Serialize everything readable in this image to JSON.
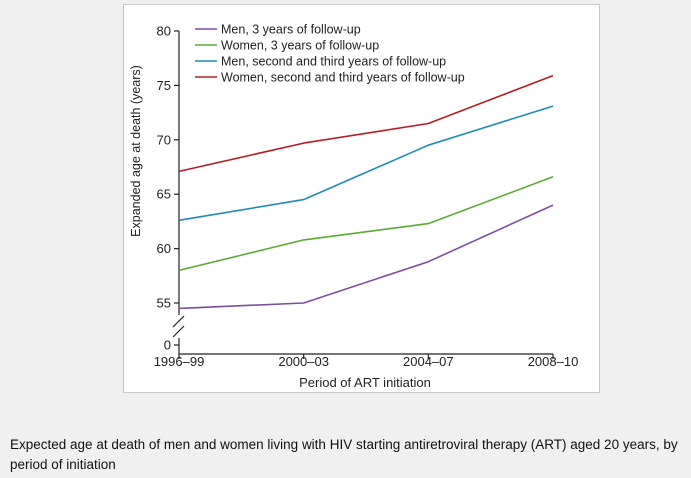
{
  "caption": "Expected age at death of men and women living with HIV starting antiretroviral therapy (ART) aged 20 years, by period of initiation",
  "chart_data": {
    "type": "line",
    "title": "",
    "xlabel": "Period of ART initiation",
    "ylabel": "Expanded age at death (years)",
    "categories": [
      "1996–99",
      "2000–03",
      "2004–07",
      "2008–10"
    ],
    "yticks": [
      55,
      60,
      65,
      70,
      75,
      80
    ],
    "ylim": [
      54,
      80
    ],
    "y_axis_break": true,
    "y_origin_label": "0",
    "grid": false,
    "legend": "top-left",
    "series": [
      {
        "name": "Men, 3 years of follow-up",
        "color": "#7b4fa0",
        "values": [
          54.5,
          55.0,
          58.8,
          64.0
        ]
      },
      {
        "name": "Women, 3 years of follow-up",
        "color": "#5aaa32",
        "values": [
          58.0,
          60.8,
          62.3,
          66.6
        ]
      },
      {
        "name": "Men, second and third years of follow-up",
        "color": "#1e8cb4",
        "values": [
          62.6,
          64.5,
          69.5,
          73.1
        ]
      },
      {
        "name": "Women, second and third years of follow-up",
        "color": "#b41e28",
        "values": [
          67.1,
          69.7,
          71.5,
          75.9
        ]
      }
    ]
  }
}
